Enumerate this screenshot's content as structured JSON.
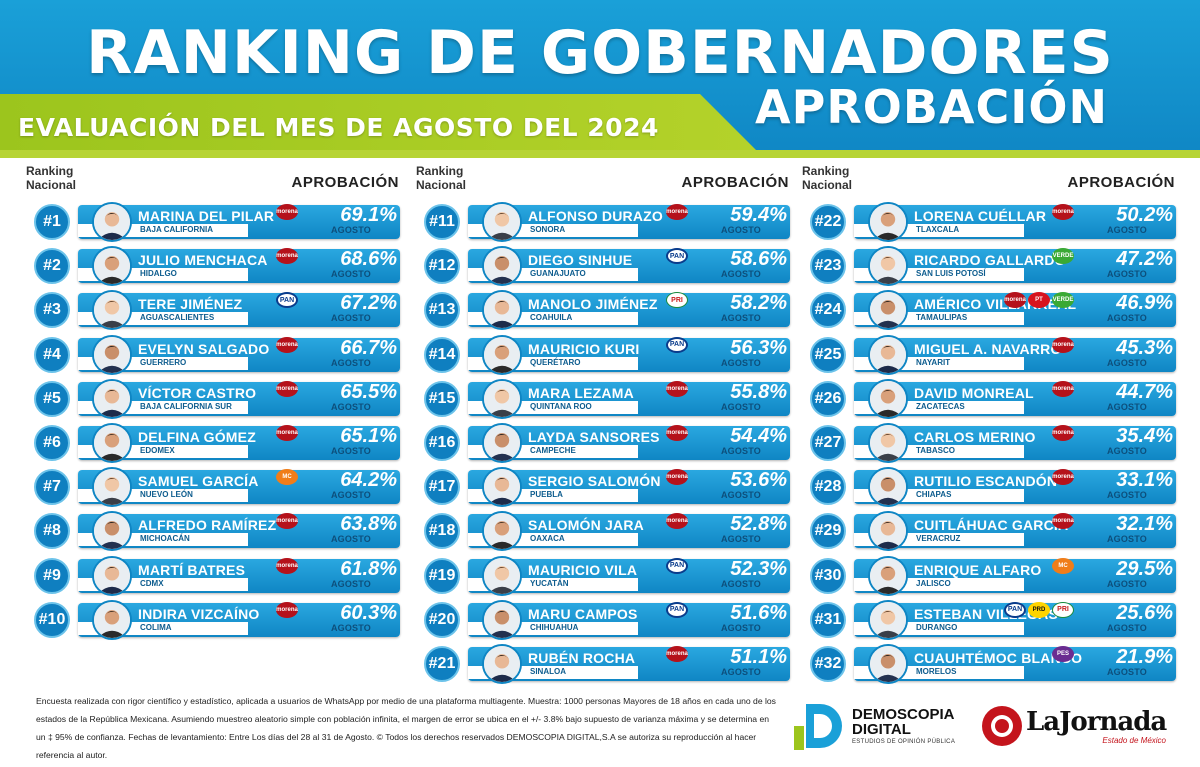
{
  "header": {
    "title": "RANKING DE GOBERNADORES",
    "subtitle": "EVALUACIÓN DEL MES DE AGOSTO DEL 2024",
    "aprobacion": "APROBACIÓN"
  },
  "columns": {
    "rank_label": "Ranking Nacional",
    "aprob_label": "APROBACIÓN"
  },
  "chart_data": {
    "type": "bar",
    "title": "RANKING DE GOBERNADORES",
    "month_label": "AGOSTO",
    "rows": [
      {
        "rank": "#1",
        "name": "MARINA DEL PILAR",
        "state": "BAJA CALIFORNIA",
        "pct": "69.1%",
        "value": 69.1,
        "parties": [
          "morena"
        ]
      },
      {
        "rank": "#2",
        "name": "JULIO MENCHACA",
        "state": "HIDALGO",
        "pct": "68.6%",
        "value": 68.6,
        "parties": [
          "morena"
        ]
      },
      {
        "rank": "#3",
        "name": "TERE JIMÉNEZ",
        "state": "AGUASCALIENTES",
        "pct": "67.2%",
        "value": 67.2,
        "parties": [
          "pan"
        ]
      },
      {
        "rank": "#4",
        "name": "EVELYN SALGADO",
        "state": "GUERRERO",
        "pct": "66.7%",
        "value": 66.7,
        "parties": [
          "morena"
        ]
      },
      {
        "rank": "#5",
        "name": "VÍCTOR CASTRO",
        "state": "BAJA CALIFORNIA SUR",
        "pct": "65.5%",
        "value": 65.5,
        "parties": [
          "morena"
        ]
      },
      {
        "rank": "#6",
        "name": "DELFINA GÓMEZ",
        "state": "EDOMEX",
        "pct": "65.1%",
        "value": 65.1,
        "parties": [
          "morena"
        ]
      },
      {
        "rank": "#7",
        "name": "SAMUEL GARCÍA",
        "state": "NUEVO LEÓN",
        "pct": "64.2%",
        "value": 64.2,
        "parties": [
          "mc"
        ]
      },
      {
        "rank": "#8",
        "name": "ALFREDO RAMÍREZ",
        "state": "MICHOACÁN",
        "pct": "63.8%",
        "value": 63.8,
        "parties": [
          "morena"
        ]
      },
      {
        "rank": "#9",
        "name": "MARTÍ BATRES",
        "state": "CDMX",
        "pct": "61.8%",
        "value": 61.8,
        "parties": [
          "morena"
        ]
      },
      {
        "rank": "#10",
        "name": "INDIRA VIZCAÍNO",
        "state": "COLIMA",
        "pct": "60.3%",
        "value": 60.3,
        "parties": [
          "morena"
        ]
      },
      {
        "rank": "#11",
        "name": "ALFONSO DURAZO",
        "state": "SONORA",
        "pct": "59.4%",
        "value": 59.4,
        "parties": [
          "morena"
        ]
      },
      {
        "rank": "#12",
        "name": "DIEGO SINHUE",
        "state": "GUANAJUATO",
        "pct": "58.6%",
        "value": 58.6,
        "parties": [
          "pan"
        ]
      },
      {
        "rank": "#13",
        "name": "MANOLO JIMÉNEZ",
        "state": "COAHUILA",
        "pct": "58.2%",
        "value": 58.2,
        "parties": [
          "pri"
        ]
      },
      {
        "rank": "#14",
        "name": "MAURICIO KURI",
        "state": "QUERÉTARO",
        "pct": "56.3%",
        "value": 56.3,
        "parties": [
          "pan"
        ]
      },
      {
        "rank": "#15",
        "name": "MARA LEZAMA",
        "state": "QUINTANA ROO",
        "pct": "55.8%",
        "value": 55.8,
        "parties": [
          "morena"
        ]
      },
      {
        "rank": "#16",
        "name": "LAYDA SANSORES",
        "state": "CAMPECHE",
        "pct": "54.4%",
        "value": 54.4,
        "parties": [
          "morena"
        ]
      },
      {
        "rank": "#17",
        "name": "SERGIO SALOMÓN",
        "state": "PUEBLA",
        "pct": "53.6%",
        "value": 53.6,
        "parties": [
          "morena"
        ]
      },
      {
        "rank": "#18",
        "name": "SALOMÓN JARA",
        "state": "OAXACA",
        "pct": "52.8%",
        "value": 52.8,
        "parties": [
          "morena"
        ]
      },
      {
        "rank": "#19",
        "name": "MAURICIO VILA",
        "state": "YUCATÁN",
        "pct": "52.3%",
        "value": 52.3,
        "parties": [
          "pan"
        ]
      },
      {
        "rank": "#20",
        "name": "MARU CAMPOS",
        "state": "CHIHUAHUA",
        "pct": "51.6%",
        "value": 51.6,
        "parties": [
          "pan"
        ]
      },
      {
        "rank": "#21",
        "name": "RUBÉN ROCHA",
        "state": "SINALOA",
        "pct": "51.1%",
        "value": 51.1,
        "parties": [
          "morena"
        ]
      },
      {
        "rank": "#22",
        "name": "LORENA CUÉLLAR",
        "state": "TLAXCALA",
        "pct": "50.2%",
        "value": 50.2,
        "parties": [
          "morena"
        ]
      },
      {
        "rank": "#23",
        "name": "RICARDO GALLARDO",
        "state": "SAN LUIS POTOSÍ",
        "pct": "47.2%",
        "value": 47.2,
        "parties": [
          "verde"
        ]
      },
      {
        "rank": "#24",
        "name": "AMÉRICO VILLARREAL",
        "state": "TAMAULIPAS",
        "pct": "46.9%",
        "value": 46.9,
        "parties": [
          "morena",
          "pt",
          "verde"
        ]
      },
      {
        "rank": "#25",
        "name": "MIGUEL A. NAVARRO",
        "state": "NAYARIT",
        "pct": "45.3%",
        "value": 45.3,
        "parties": [
          "morena"
        ]
      },
      {
        "rank": "#26",
        "name": "DAVID MONREAL",
        "state": "ZACATECAS",
        "pct": "44.7%",
        "value": 44.7,
        "parties": [
          "morena"
        ]
      },
      {
        "rank": "#27",
        "name": "CARLOS MERINO",
        "state": "TABASCO",
        "pct": "35.4%",
        "value": 35.4,
        "parties": [
          "morena"
        ]
      },
      {
        "rank": "#28",
        "name": "RUTILIO ESCANDÓN",
        "state": "CHIAPAS",
        "pct": "33.1%",
        "value": 33.1,
        "parties": [
          "morena"
        ]
      },
      {
        "rank": "#29",
        "name": "CUITLÁHUAC GARCÍA",
        "state": "VERACRUZ",
        "pct": "32.1%",
        "value": 32.1,
        "parties": [
          "morena"
        ]
      },
      {
        "rank": "#30",
        "name": "ENRIQUE ALFARO",
        "state": "JALISCO",
        "pct": "29.5%",
        "value": 29.5,
        "parties": [
          "mc"
        ]
      },
      {
        "rank": "#31",
        "name": "ESTEBAN VILLEGAS",
        "state": "DURANGO",
        "pct": "25.6%",
        "value": 25.6,
        "parties": [
          "pan",
          "prd",
          "pri"
        ]
      },
      {
        "rank": "#32",
        "name": "CUAUHTÉMOC BLANCO",
        "state": "MORELOS",
        "pct": "21.9%",
        "value": 21.9,
        "parties": [
          "pes"
        ]
      }
    ]
  },
  "party_labels": {
    "morena": "morena",
    "pan": "PAN",
    "pri": "PRI",
    "prd": "PRD",
    "mc": "MC",
    "verde": "VERDE",
    "pt": "PT",
    "pes": "PES"
  },
  "colors": {
    "primary_blue": "#0f86c4",
    "light_blue": "#2aa8e0",
    "accent_green": "#9cc51d",
    "morena_red": "#b5121b"
  },
  "footer": {
    "disclaimer": "Encuesta realizada con rigor científico y estadístico, aplicada a usuarios de WhatsApp por medio de una plataforma multiagente. Muestra: 1000 personas Mayores de 18 años en cada uno de los estados de la República Mexicana. Asumiendo muestreo aleatorio simple con población infinita, el margen de error se ubica en el +/- 3.8% bajo supuesto de varianza máxima y se determina en un ‡ 95% de confianza. Fechas de levantamiento: Entre Los días del 28 al 31 de Agosto. © Todos los derechos reservados DEMOSCOPIA DIGITAL,S.A se autoriza su reproducción al hacer referencia al autor.",
    "logo1_line1": "DEMOSCOPIA",
    "logo1_line2": "DIGITAL",
    "logo1_sub": "ESTUDIOS DE OPINIÓN PÚBLICA",
    "logo2_name": "LaJornada",
    "logo2_sub": "Estado de México"
  }
}
